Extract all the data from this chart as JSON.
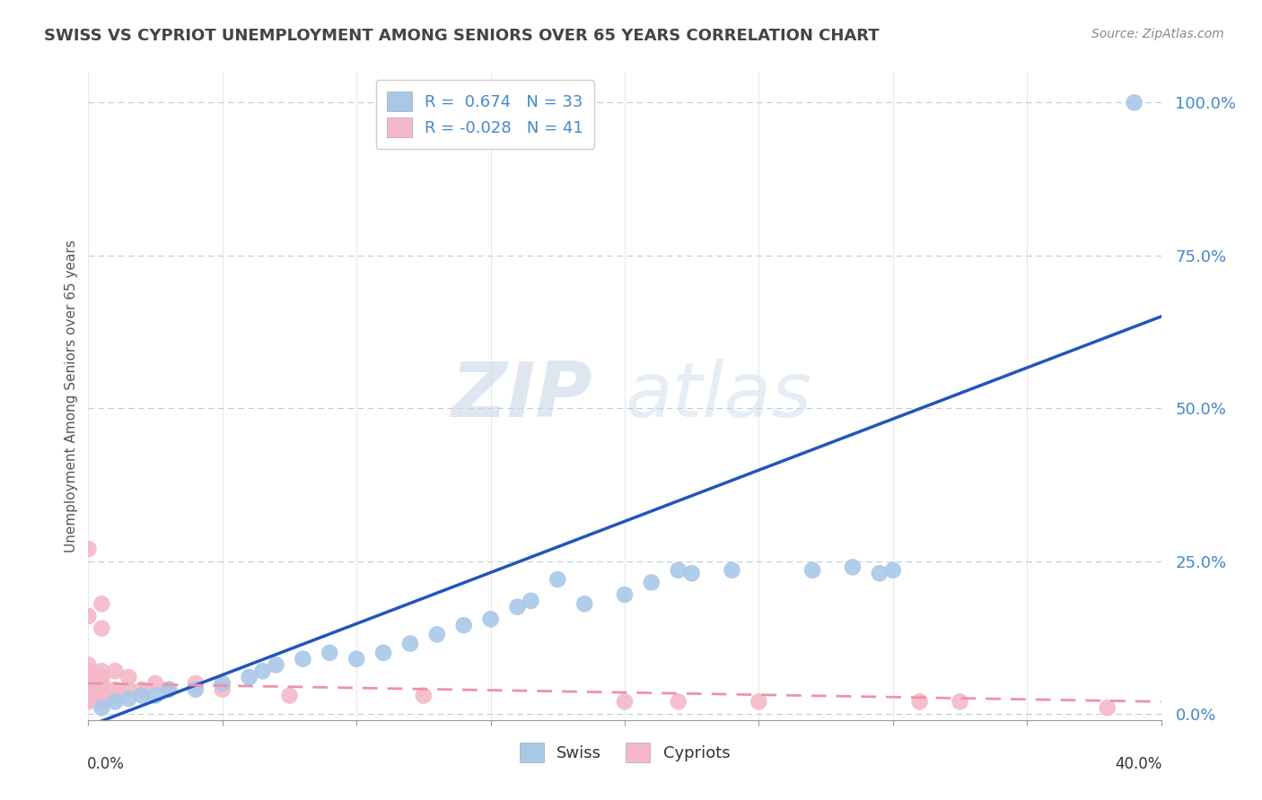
{
  "title": "SWISS VS CYPRIOT UNEMPLOYMENT AMONG SENIORS OVER 65 YEARS CORRELATION CHART",
  "source": "Source: ZipAtlas.com",
  "ylabel": "Unemployment Among Seniors over 65 years",
  "xlim": [
    0.0,
    0.4
  ],
  "ylim": [
    -0.01,
    1.05
  ],
  "yticks": [
    0.0,
    0.25,
    0.5,
    0.75,
    1.0
  ],
  "ytick_labels": [
    "0.0%",
    "25.0%",
    "50.0%",
    "75.0%",
    "100.0%"
  ],
  "xtick_positions": [
    0.0,
    0.05,
    0.1,
    0.15,
    0.2,
    0.25,
    0.3,
    0.35,
    0.4
  ],
  "swiss_color": "#a8c8e8",
  "cypriot_color": "#f5b8c8",
  "swiss_line_color": "#2255bb",
  "cypriot_line_color": "#f090a8",
  "legend_swiss_R": "0.674",
  "legend_swiss_N": "33",
  "legend_cypriot_R": "-0.028",
  "legend_cypriot_N": "41",
  "watermark_zip": "ZIP",
  "watermark_atlas": "atlas",
  "background_color": "#ffffff",
  "grid_color": "#c0ccd8",
  "title_color": "#444444",
  "source_color": "#888888",
  "ylabel_color": "#555555",
  "tick_label_color": "#4488cc",
  "swiss_x": [
    0.005,
    0.01,
    0.015,
    0.02,
    0.025,
    0.03,
    0.04,
    0.05,
    0.06,
    0.065,
    0.07,
    0.08,
    0.09,
    0.1,
    0.11,
    0.12,
    0.13,
    0.14,
    0.15,
    0.16,
    0.165,
    0.175,
    0.185,
    0.2,
    0.21,
    0.22,
    0.225,
    0.24,
    0.27,
    0.285,
    0.295,
    0.3,
    0.39
  ],
  "swiss_y": [
    0.01,
    0.02,
    0.025,
    0.03,
    0.03,
    0.04,
    0.04,
    0.05,
    0.06,
    0.07,
    0.08,
    0.09,
    0.1,
    0.09,
    0.1,
    0.115,
    0.13,
    0.145,
    0.155,
    0.175,
    0.185,
    0.22,
    0.18,
    0.195,
    0.215,
    0.235,
    0.23,
    0.235,
    0.235,
    0.24,
    0.23,
    0.235,
    1.0
  ],
  "cypriot_x": [
    0.0,
    0.0,
    0.0,
    0.0,
    0.0,
    0.0,
    0.0,
    0.0,
    0.0,
    0.0,
    0.0,
    0.0,
    0.0,
    0.0,
    0.0,
    0.005,
    0.005,
    0.005,
    0.005,
    0.005,
    0.005,
    0.005,
    0.005,
    0.01,
    0.01,
    0.01,
    0.015,
    0.015,
    0.02,
    0.025,
    0.03,
    0.04,
    0.05,
    0.075,
    0.125,
    0.2,
    0.22,
    0.25,
    0.31,
    0.325,
    0.38
  ],
  "cypriot_y": [
    0.02,
    0.025,
    0.03,
    0.03,
    0.04,
    0.04,
    0.04,
    0.05,
    0.05,
    0.06,
    0.06,
    0.07,
    0.08,
    0.16,
    0.27,
    0.02,
    0.03,
    0.04,
    0.05,
    0.06,
    0.07,
    0.14,
    0.18,
    0.03,
    0.04,
    0.07,
    0.04,
    0.06,
    0.04,
    0.05,
    0.04,
    0.05,
    0.04,
    0.03,
    0.03,
    0.02,
    0.02,
    0.02,
    0.02,
    0.02,
    0.01
  ]
}
